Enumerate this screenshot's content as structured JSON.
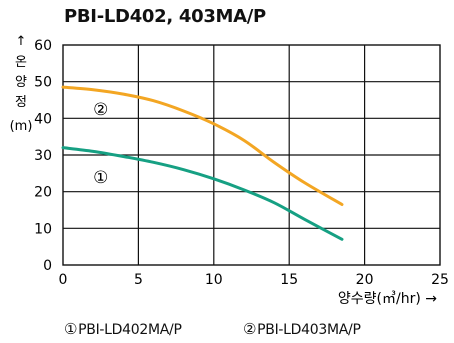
{
  "chart_data": {
    "type": "line",
    "title": "PBI-LD402, 403MA/P",
    "ylabel_arrow": "↑",
    "ylabel_chars": [
      "온",
      "양",
      "정"
    ],
    "ylabel_unit": "(m)",
    "xlabel": "양수량(㎥/hr) →",
    "xlim": [
      0,
      25
    ],
    "ylim": [
      0,
      60
    ],
    "xticks": [
      0,
      5,
      10,
      15,
      20,
      25
    ],
    "yticks": [
      0,
      10,
      20,
      30,
      40,
      50,
      60
    ],
    "grid": true,
    "series": [
      {
        "name": "PBI-LD402MA/P",
        "marker": "①",
        "color": "#16a083",
        "x": [
          0,
          2,
          4,
          6,
          8,
          10,
          12,
          14,
          16,
          18.5
        ],
        "y": [
          32,
          31,
          29.6,
          28,
          26,
          23.5,
          20.5,
          17,
          12.5,
          7
        ]
      },
      {
        "name": "PBI-LD403MA/P",
        "marker": "②",
        "color": "#f3a623",
        "x": [
          0,
          2,
          4,
          6,
          8,
          10,
          12,
          14,
          16,
          18.5
        ],
        "y": [
          48.5,
          47.8,
          46.6,
          44.8,
          42,
          38.5,
          34,
          28,
          22.5,
          16.5
        ]
      }
    ]
  }
}
